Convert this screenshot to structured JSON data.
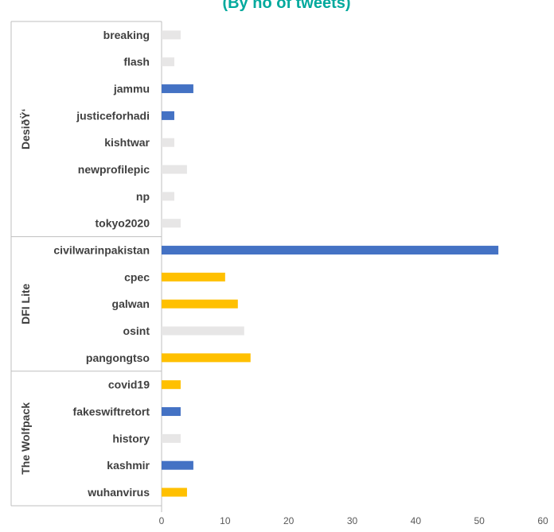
{
  "chart_data": {
    "type": "bar",
    "orientation": "horizontal",
    "title": "(By no of tweets)",
    "xlim": [
      0,
      60
    ],
    "x_ticks": [
      0,
      10,
      20,
      30,
      40,
      50,
      60
    ],
    "grid": false,
    "colors": {
      "blue": "#4472c4",
      "yellow": "#ffc000",
      "gray": "#e7e6e6",
      "title": "#00a99d"
    },
    "groups": [
      {
        "name": "DesiðŸ‘",
        "categories": [
          {
            "label": "breaking",
            "value": 3,
            "color": "gray"
          },
          {
            "label": "flash",
            "value": 2,
            "color": "gray"
          },
          {
            "label": "jammu",
            "value": 5,
            "color": "blue"
          },
          {
            "label": "justiceforhadi",
            "value": 2,
            "color": "blue"
          },
          {
            "label": "kishtwar",
            "value": 2,
            "color": "gray"
          },
          {
            "label": "newprofilepic",
            "value": 4,
            "color": "gray"
          },
          {
            "label": "np",
            "value": 2,
            "color": "gray"
          },
          {
            "label": "tokyo2020",
            "value": 3,
            "color": "gray"
          }
        ]
      },
      {
        "name": "DFI Lite",
        "categories": [
          {
            "label": "civilwarinpakistan",
            "value": 53,
            "color": "blue"
          },
          {
            "label": "cpec",
            "value": 10,
            "color": "yellow"
          },
          {
            "label": "galwan",
            "value": 12,
            "color": "yellow"
          },
          {
            "label": "osint",
            "value": 13,
            "color": "gray"
          },
          {
            "label": "pangongtso",
            "value": 14,
            "color": "yellow"
          }
        ]
      },
      {
        "name": "The Wolfpack",
        "categories": [
          {
            "label": "covid19",
            "value": 3,
            "color": "yellow"
          },
          {
            "label": "fakeswiftretort",
            "value": 3,
            "color": "blue"
          },
          {
            "label": "history",
            "value": 3,
            "color": "gray"
          },
          {
            "label": "kashmir",
            "value": 5,
            "color": "blue"
          },
          {
            "label": "wuhanvirus",
            "value": 4,
            "color": "yellow"
          }
        ]
      }
    ]
  }
}
